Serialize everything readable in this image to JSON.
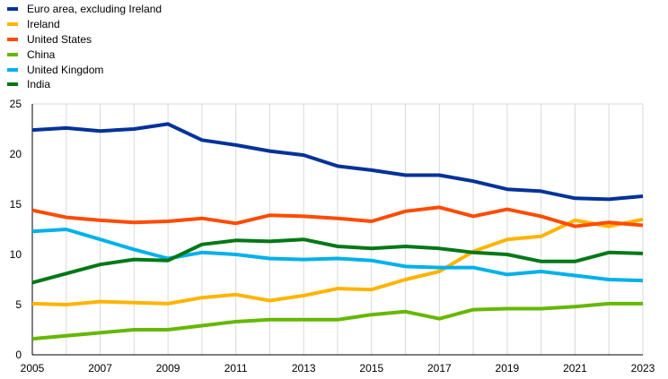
{
  "chart_data": {
    "type": "line",
    "x": [
      2005,
      2006,
      2007,
      2008,
      2009,
      2010,
      2011,
      2012,
      2013,
      2014,
      2015,
      2016,
      2017,
      2018,
      2019,
      2020,
      2021,
      2022,
      2023
    ],
    "x_tick_labels": [
      "2005",
      "2007",
      "2009",
      "2011",
      "2013",
      "2015",
      "2017",
      "2019",
      "2021",
      "2023"
    ],
    "y_tick_labels": [
      "0",
      "5",
      "10",
      "15",
      "20",
      "25"
    ],
    "ylim": [
      0,
      25
    ],
    "grid": "vertical",
    "legend_position": "top-left",
    "series": [
      {
        "name": "Euro area, excluding Ireland",
        "color": "#003299",
        "values": [
          22.4,
          22.6,
          22.3,
          22.5,
          23.0,
          21.4,
          20.9,
          20.3,
          19.9,
          18.8,
          18.4,
          17.9,
          17.9,
          17.3,
          16.5,
          16.3,
          15.6,
          15.5,
          15.8
        ]
      },
      {
        "name": "Ireland",
        "color": "#FFB400",
        "values": [
          5.1,
          5.0,
          5.3,
          5.2,
          5.1,
          5.7,
          6.0,
          5.4,
          5.9,
          6.6,
          6.5,
          7.5,
          8.3,
          10.3,
          11.5,
          11.8,
          13.4,
          12.8,
          13.5
        ]
      },
      {
        "name": "United States",
        "color": "#FF4B00",
        "values": [
          14.4,
          13.7,
          13.4,
          13.2,
          13.3,
          13.6,
          13.1,
          13.9,
          13.8,
          13.6,
          13.3,
          14.3,
          14.7,
          13.8,
          14.5,
          13.8,
          12.8,
          13.2,
          12.9
        ]
      },
      {
        "name": "China",
        "color": "#65B800",
        "values": [
          1.6,
          1.9,
          2.2,
          2.5,
          2.5,
          2.9,
          3.3,
          3.5,
          3.5,
          3.5,
          4.0,
          4.3,
          3.6,
          4.5,
          4.6,
          4.6,
          4.8,
          5.1,
          5.1
        ]
      },
      {
        "name": "United Kingdom",
        "color": "#00B1EA",
        "values": [
          12.3,
          12.5,
          11.5,
          10.5,
          9.6,
          10.2,
          10.0,
          9.6,
          9.5,
          9.6,
          9.4,
          8.8,
          8.7,
          8.7,
          8.0,
          8.3,
          7.9,
          7.5,
          7.4
        ]
      },
      {
        "name": "India",
        "color": "#007816",
        "values": [
          7.2,
          8.1,
          9.0,
          9.5,
          9.4,
          11.0,
          11.4,
          11.3,
          11.5,
          10.8,
          10.6,
          10.8,
          10.6,
          10.2,
          10.0,
          9.3,
          9.3,
          10.2,
          10.1
        ]
      }
    ]
  }
}
